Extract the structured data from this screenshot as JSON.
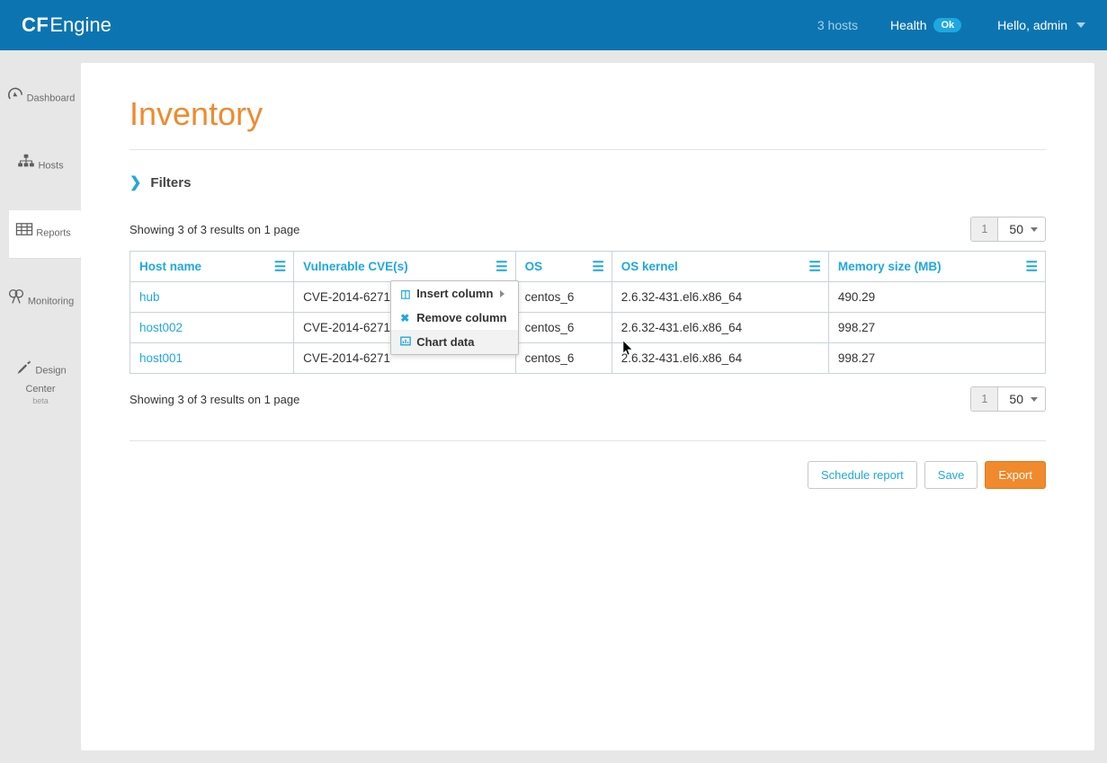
{
  "header": {
    "logo_cf": "CF",
    "logo_engine": "Engine",
    "hosts_text": "3 hosts",
    "health_label": "Health",
    "health_badge": "Ok",
    "user_greeting": "Hello, admin"
  },
  "sidebar": {
    "items": [
      {
        "label": "Dashboard",
        "icon": "dashboard-icon"
      },
      {
        "label": "Hosts",
        "icon": "hosts-icon"
      },
      {
        "label": "Reports",
        "icon": "reports-icon",
        "active": true
      },
      {
        "label": "Monitoring",
        "icon": "monitoring-icon"
      },
      {
        "label": "Design Center",
        "icon": "design-center-icon",
        "sub": "beta"
      }
    ]
  },
  "page": {
    "title": "Inventory",
    "filters_label": "Filters",
    "results_text_top": "Showing 3 of 3 results on 1 page",
    "results_text_bottom": "Showing 3 of 3 results on 1 page",
    "pager_page": "1",
    "pager_size": "50"
  },
  "table": {
    "columns": [
      {
        "key": "host",
        "label": "Host name"
      },
      {
        "key": "cve",
        "label": "Vulnerable CVE(s)"
      },
      {
        "key": "os",
        "label": "OS"
      },
      {
        "key": "kernel",
        "label": "OS kernel"
      },
      {
        "key": "mem",
        "label": "Memory size (MB)"
      }
    ],
    "rows": [
      {
        "host": "hub",
        "cve": "CVE-2014-6271",
        "os": "centos_6",
        "kernel": "2.6.32-431.el6.x86_64",
        "mem": "490.29"
      },
      {
        "host": "host002",
        "cve": "CVE-2014-6271",
        "os": "centos_6",
        "kernel": "2.6.32-431.el6.x86_64",
        "mem": "998.27"
      },
      {
        "host": "host001",
        "cve": "CVE-2014-6271",
        "os": "centos_6",
        "kernel": "2.6.32-431.el6.x86_64",
        "mem": "998.27"
      }
    ]
  },
  "context_menu": {
    "items": [
      {
        "label": "Insert column",
        "icon": "insert-column-icon",
        "has_submenu": true
      },
      {
        "label": "Remove column",
        "icon": "remove-column-icon"
      },
      {
        "label": "Chart data",
        "icon": "chart-data-icon",
        "hovered": true
      }
    ]
  },
  "actions": {
    "schedule": "Schedule report",
    "save": "Save",
    "export": "Export"
  },
  "colors": {
    "brand_blue": "#0c75b1",
    "accent_blue": "#1fa8e0",
    "accent_orange": "#ee8b2f",
    "button_orange": "#f08a2d",
    "page_bg": "#e7e7e7",
    "border_gray": "#c9d3da",
    "text_muted": "#6b6b6b"
  }
}
